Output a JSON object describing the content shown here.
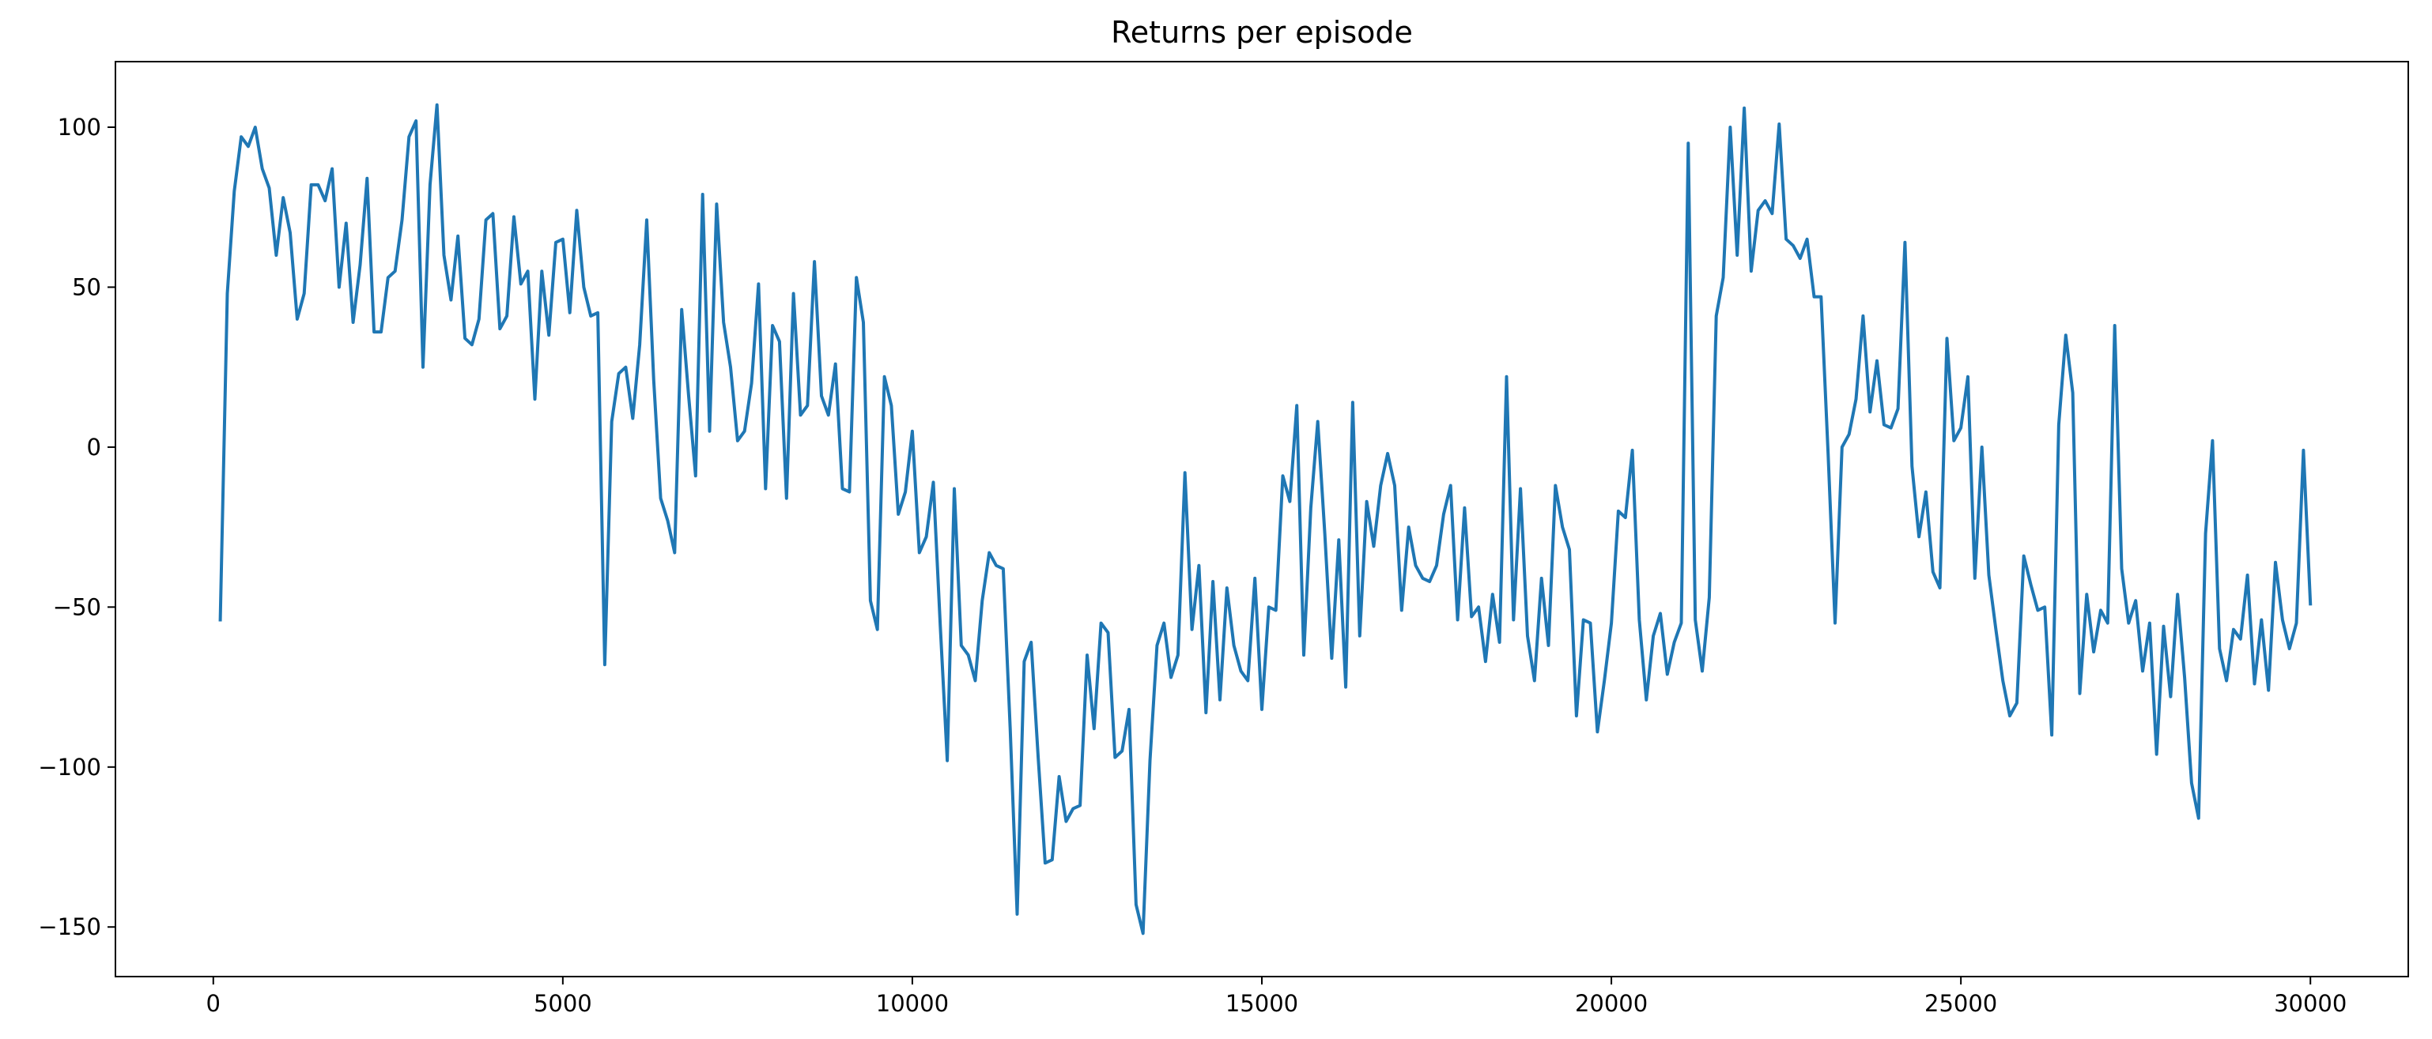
{
  "chart_data": {
    "type": "line",
    "title": "Returns per episode",
    "xlabel": "",
    "ylabel": "",
    "xlim": [
      -1400,
      31400
    ],
    "ylim": [
      -165.5,
      120.5
    ],
    "xticks": [
      0,
      5000,
      10000,
      15000,
      20000,
      25000,
      30000
    ],
    "yticks": [
      -150,
      -100,
      -50,
      0,
      50,
      100
    ],
    "grid": false,
    "legend": "none",
    "series": [
      {
        "color": "#1f77b4",
        "x": [
          100,
          200,
          300,
          400,
          500,
          600,
          700,
          800,
          900,
          1000,
          1100,
          1200,
          1300,
          1400,
          1500,
          1600,
          1700,
          1800,
          1900,
          2000,
          2100,
          2200,
          2300,
          2400,
          2500,
          2600,
          2700,
          2800,
          2900,
          3000,
          3100,
          3200,
          3300,
          3400,
          3500,
          3600,
          3700,
          3800,
          3900,
          4000,
          4100,
          4200,
          4300,
          4400,
          4500,
          4600,
          4700,
          4800,
          4900,
          5000,
          5100,
          5200,
          5300,
          5400,
          5500,
          5600,
          5700,
          5800,
          5900,
          6000,
          6100,
          6200,
          6300,
          6400,
          6500,
          6600,
          6700,
          6800,
          6900,
          7000,
          7100,
          7200,
          7300,
          7400,
          7500,
          7600,
          7700,
          7800,
          7900,
          8000,
          8100,
          8200,
          8300,
          8400,
          8500,
          8600,
          8700,
          8800,
          8900,
          9000,
          9100,
          9200,
          9300,
          9400,
          9500,
          9600,
          9700,
          9800,
          9900,
          10000,
          10100,
          10200,
          10300,
          10400,
          10500,
          10600,
          10700,
          10800,
          10900,
          11000,
          11100,
          11200,
          11300,
          11400,
          11500,
          11600,
          11700,
          11800,
          11900,
          12000,
          12100,
          12200,
          12300,
          12400,
          12500,
          12600,
          12700,
          12800,
          12900,
          13000,
          13100,
          13200,
          13300,
          13400,
          13500,
          13600,
          13700,
          13800,
          13900,
          14000,
          14100,
          14200,
          14300,
          14400,
          14500,
          14600,
          14700,
          14800,
          14900,
          15000,
          15100,
          15200,
          15300,
          15400,
          15500,
          15600,
          15700,
          15800,
          15900,
          16000,
          16100,
          16200,
          16300,
          16400,
          16500,
          16600,
          16700,
          16800,
          16900,
          17000,
          17100,
          17200,
          17300,
          17400,
          17500,
          17600,
          17700,
          17800,
          17900,
          18000,
          18100,
          18200,
          18300,
          18400,
          18500,
          18600,
          18700,
          18800,
          18900,
          19000,
          19100,
          19200,
          19300,
          19400,
          19500,
          19600,
          19700,
          19800,
          19900,
          20000,
          20100,
          20200,
          20300,
          20400,
          20500,
          20600,
          20700,
          20800,
          20900,
          21000,
          21100,
          21200,
          21300,
          21400,
          21500,
          21600,
          21700,
          21800,
          21900,
          22000,
          22100,
          22200,
          22300,
          22400,
          22500,
          22600,
          22700,
          22800,
          22900,
          23000,
          23100,
          23200,
          23300,
          23400,
          23500,
          23600,
          23700,
          23800,
          23900,
          24000,
          24100,
          24200,
          24300,
          24400,
          24500,
          24600,
          24700,
          24800,
          24900,
          25000,
          25100,
          25200,
          25300,
          25400,
          25500,
          25600,
          25700,
          25800,
          25900,
          26000,
          26100,
          26200,
          26300,
          26400,
          26500,
          26600,
          26700,
          26800,
          26900,
          27000,
          27100,
          27200,
          27300,
          27400,
          27500,
          27600,
          27700,
          27800,
          27900,
          28000,
          28100,
          28200,
          28300,
          28400,
          28500,
          28600,
          28700,
          28800,
          28900,
          29000,
          29100,
          29200,
          29300,
          29400,
          29500,
          29600,
          29700,
          29800,
          29900,
          30000
        ],
        "y": [
          -54,
          48,
          80,
          97,
          94,
          100,
          87,
          81,
          60,
          78,
          67,
          40,
          48,
          82,
          82,
          77,
          87,
          50,
          70,
          39,
          57,
          84,
          36,
          36,
          53,
          55,
          71,
          97,
          102,
          25,
          82,
          107,
          60,
          46,
          66,
          34,
          32,
          40,
          71,
          73,
          37,
          41,
          72,
          51,
          55,
          15,
          55,
          35,
          64,
          65,
          42,
          74,
          50,
          41,
          42,
          -68,
          8,
          23,
          25,
          9,
          32,
          71,
          21,
          -16,
          -23,
          -33,
          43,
          16,
          -9,
          79,
          5,
          76,
          39,
          25,
          2,
          5,
          20,
          51,
          -13,
          38,
          33,
          -16,
          48,
          10,
          13,
          58,
          16,
          10,
          26,
          -13,
          -14,
          53,
          39,
          -48,
          -57,
          22,
          13,
          -21,
          -14,
          5,
          -33,
          -28,
          -11,
          -56,
          -98,
          -13,
          -62,
          -65,
          -73,
          -48,
          -33,
          -37,
          -38,
          -88,
          -146,
          -67,
          -61,
          -97,
          -130,
          -129,
          -103,
          -117,
          -113,
          -112,
          -65,
          -88,
          -55,
          -58,
          -97,
          -95,
          -82,
          -143,
          -152,
          -98,
          -62,
          -55,
          -72,
          -65,
          -8,
          -57,
          -37,
          -83,
          -42,
          -79,
          -44,
          -62,
          -70,
          -73,
          -41,
          -82,
          -50,
          -51,
          -9,
          -17,
          13,
          -65,
          -19,
          8,
          -27,
          -66,
          -29,
          -75,
          14,
          -59,
          -17,
          -31,
          -12,
          -2,
          -12,
          -51,
          -25,
          -37,
          -41,
          -42,
          -37,
          -21,
          -12,
          -54,
          -19,
          -53,
          -50,
          -67,
          -46,
          -61,
          22,
          -54,
          -13,
          -59,
          -73,
          -41,
          -62,
          -12,
          -25,
          -32,
          -84,
          -54,
          -55,
          -89,
          -73,
          -55,
          -20,
          -22,
          -1,
          -54,
          -79,
          -59,
          -52,
          -71,
          -61,
          -55,
          95,
          -54,
          -70,
          -47,
          41,
          53,
          100,
          60,
          106,
          55,
          74,
          77,
          73,
          101,
          65,
          63,
          59,
          65,
          47,
          47,
          -2,
          -55,
          0,
          4,
          15,
          41,
          11,
          27,
          7,
          6,
          12,
          64,
          -6,
          -28,
          -14,
          -39,
          -44,
          34,
          2,
          6,
          22,
          -41,
          0,
          -40,
          -57,
          -73,
          -84,
          -80,
          -34,
          -43,
          -51,
          -50,
          -90,
          7,
          35,
          17,
          -77,
          -46,
          -64,
          -51,
          -55,
          38,
          -38,
          -55,
          -48,
          -70,
          -55,
          -96,
          -56,
          -78,
          -46,
          -72,
          -105,
          -116,
          -27,
          2,
          -63,
          -73,
          -57,
          -60,
          -40,
          -74,
          -54,
          -76,
          -36,
          -54,
          -63,
          -55,
          -1,
          -49
        ]
      }
    ]
  }
}
